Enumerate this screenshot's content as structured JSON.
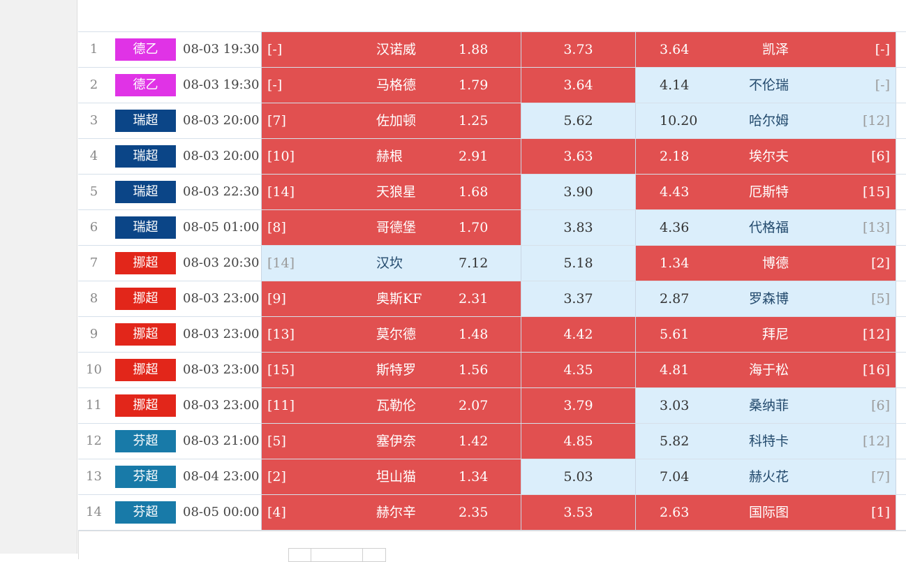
{
  "colors": {
    "bundesliga2": "#e033e6",
    "swiss": "#0b4587",
    "norway": "#e2261a",
    "finland": "#187aa8",
    "win_cell": "#e15050",
    "lose_cell": "#dbeefb"
  },
  "matches": [
    {
      "index": "1",
      "league": "德乙",
      "time": "08-03 19:30",
      "home_rank": "[-]",
      "home_team": "汉诺威",
      "home_odds": "1.88",
      "draw_odds": "3.73",
      "away_odds": "3.64",
      "away_team": "凯泽",
      "away_rank": "[-]"
    },
    {
      "index": "2",
      "league": "德乙",
      "time": "08-03 19:30",
      "home_rank": "[-]",
      "home_team": "马格德",
      "home_odds": "1.79",
      "draw_odds": "3.64",
      "away_odds": "4.14",
      "away_team": "不伦瑞",
      "away_rank": "[-]"
    },
    {
      "index": "3",
      "league": "瑞超",
      "time": "08-03 20:00",
      "home_rank": "[7]",
      "home_team": "佐加顿",
      "home_odds": "1.25",
      "draw_odds": "5.62",
      "away_odds": "10.20",
      "away_team": "哈尔姆",
      "away_rank": "[12]"
    },
    {
      "index": "4",
      "league": "瑞超",
      "time": "08-03 20:00",
      "home_rank": "[10]",
      "home_team": "赫根",
      "home_odds": "2.91",
      "draw_odds": "3.63",
      "away_odds": "2.18",
      "away_team": "埃尔夫",
      "away_rank": "[6]"
    },
    {
      "index": "5",
      "league": "瑞超",
      "time": "08-03 22:30",
      "home_rank": "[14]",
      "home_team": "天狼星",
      "home_odds": "1.68",
      "draw_odds": "3.90",
      "away_odds": "4.43",
      "away_team": "厄斯特",
      "away_rank": "[15]"
    },
    {
      "index": "6",
      "league": "瑞超",
      "time": "08-05 01:00",
      "home_rank": "[8]",
      "home_team": "哥德堡",
      "home_odds": "1.70",
      "draw_odds": "3.83",
      "away_odds": "4.36",
      "away_team": "代格福",
      "away_rank": "[13]"
    },
    {
      "index": "7",
      "league": "挪超",
      "time": "08-03 20:30",
      "home_rank": "[14]",
      "home_team": "汉坎",
      "home_odds": "7.12",
      "draw_odds": "5.18",
      "away_odds": "1.34",
      "away_team": "博德",
      "away_rank": "[2]"
    },
    {
      "index": "8",
      "league": "挪超",
      "time": "08-03 23:00",
      "home_rank": "[9]",
      "home_team": "奥斯KF",
      "home_odds": "2.31",
      "draw_odds": "3.37",
      "away_odds": "2.87",
      "away_team": "罗森博",
      "away_rank": "[5]"
    },
    {
      "index": "9",
      "league": "挪超",
      "time": "08-03 23:00",
      "home_rank": "[13]",
      "home_team": "莫尔德",
      "home_odds": "1.48",
      "draw_odds": "4.42",
      "away_odds": "5.61",
      "away_team": "拜尼",
      "away_rank": "[12]"
    },
    {
      "index": "10",
      "league": "挪超",
      "time": "08-03 23:00",
      "home_rank": "[15]",
      "home_team": "斯特罗",
      "home_odds": "1.56",
      "draw_odds": "4.35",
      "away_odds": "4.81",
      "away_team": "海于松",
      "away_rank": "[16]"
    },
    {
      "index": "11",
      "league": "挪超",
      "time": "08-03 23:00",
      "home_rank": "[11]",
      "home_team": "瓦勒伦",
      "home_odds": "2.07",
      "draw_odds": "3.79",
      "away_odds": "3.03",
      "away_team": "桑纳菲",
      "away_rank": "[6]"
    },
    {
      "index": "12",
      "league": "芬超",
      "time": "08-03 21:00",
      "home_rank": "[5]",
      "home_team": "塞伊奈",
      "home_odds": "1.42",
      "draw_odds": "4.85",
      "away_odds": "5.82",
      "away_team": "科特卡",
      "away_rank": "[12]"
    },
    {
      "index": "13",
      "league": "芬超",
      "time": "08-04 23:00",
      "home_rank": "[2]",
      "home_team": "坦山猫",
      "home_odds": "1.34",
      "draw_odds": "5.03",
      "away_odds": "7.04",
      "away_team": "赫火花",
      "away_rank": "[7]"
    },
    {
      "index": "14",
      "league": "芬超",
      "time": "08-05 00:00",
      "home_rank": "[4]",
      "home_team": "赫尔辛",
      "home_odds": "2.35",
      "draw_odds": "3.53",
      "away_odds": "2.63",
      "away_team": "国际图",
      "away_rank": "[1]"
    }
  ]
}
